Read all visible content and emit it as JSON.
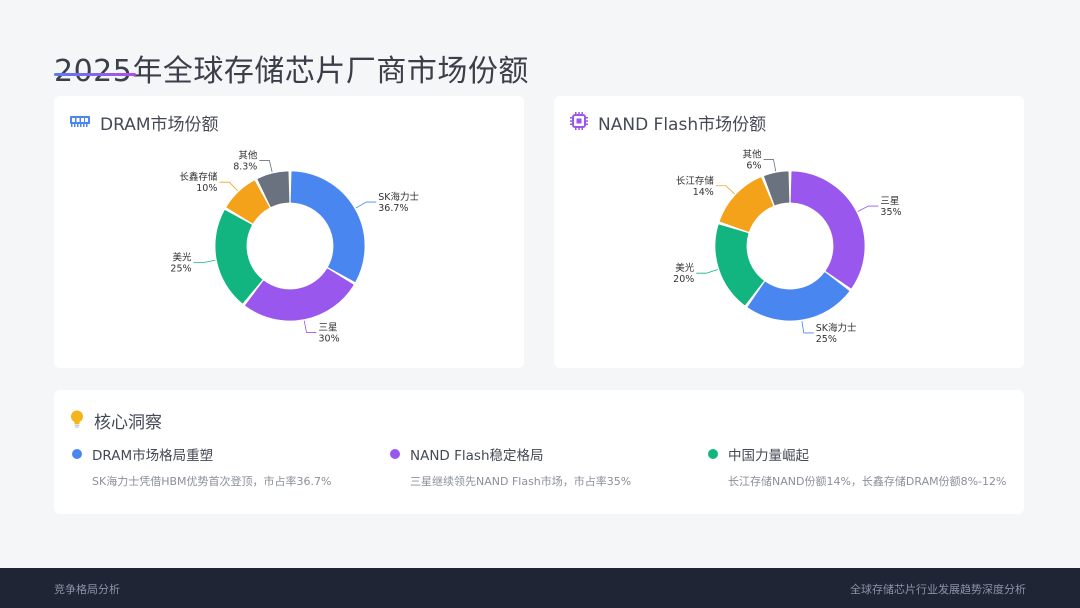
{
  "title": "2025年全球存储芯片厂商市场份额",
  "dram": {
    "heading": "DRAM市场份额",
    "chart_data": {
      "type": "pie",
      "title": "DRAM市场份额",
      "categories": [
        "SK海力士",
        "三星",
        "美光",
        "长鑫存储",
        "其他"
      ],
      "values": [
        36.7,
        30,
        25,
        10,
        8.3
      ],
      "labels": [
        "36.7%",
        "30%",
        "25%",
        "10%",
        "8.3%"
      ],
      "colors": [
        "#4a86f0",
        "#9a57ee",
        "#12b57f",
        "#f3a21a",
        "#6a7280"
      ]
    }
  },
  "nand": {
    "heading": "NAND Flash市场份额",
    "chart_data": {
      "type": "pie",
      "title": "NAND Flash市场份额",
      "categories": [
        "三星",
        "SK海力士",
        "美光",
        "长江存储",
        "其他"
      ],
      "values": [
        35,
        25,
        20,
        14,
        6
      ],
      "labels": [
        "35%",
        "25%",
        "20%",
        "14%",
        "6%"
      ],
      "colors": [
        "#9a57ee",
        "#4a86f0",
        "#12b57f",
        "#f3a21a",
        "#6a7280"
      ]
    }
  },
  "insights": {
    "heading": "核心洞察",
    "items": [
      {
        "title": "DRAM市场格局重塑",
        "desc": "SK海力士凭借HBM优势首次登顶，市占率36.7%",
        "color": "#4a86f0"
      },
      {
        "title": "NAND Flash稳定格局",
        "desc": "三星继续领先NAND Flash市场，市占率35%",
        "color": "#9a57ee"
      },
      {
        "title": "中国力量崛起",
        "desc": "长江存储NAND份额14%，长鑫存储DRAM份额8%-12%",
        "color": "#12b57f"
      }
    ]
  },
  "footer": {
    "left": "竞争格局分析",
    "right": "全球存储芯片行业发展趋势深度分析"
  },
  "icons": {
    "dram": "memory-module-icon",
    "nand": "chip-icon",
    "insight": "lightbulb-icon"
  }
}
